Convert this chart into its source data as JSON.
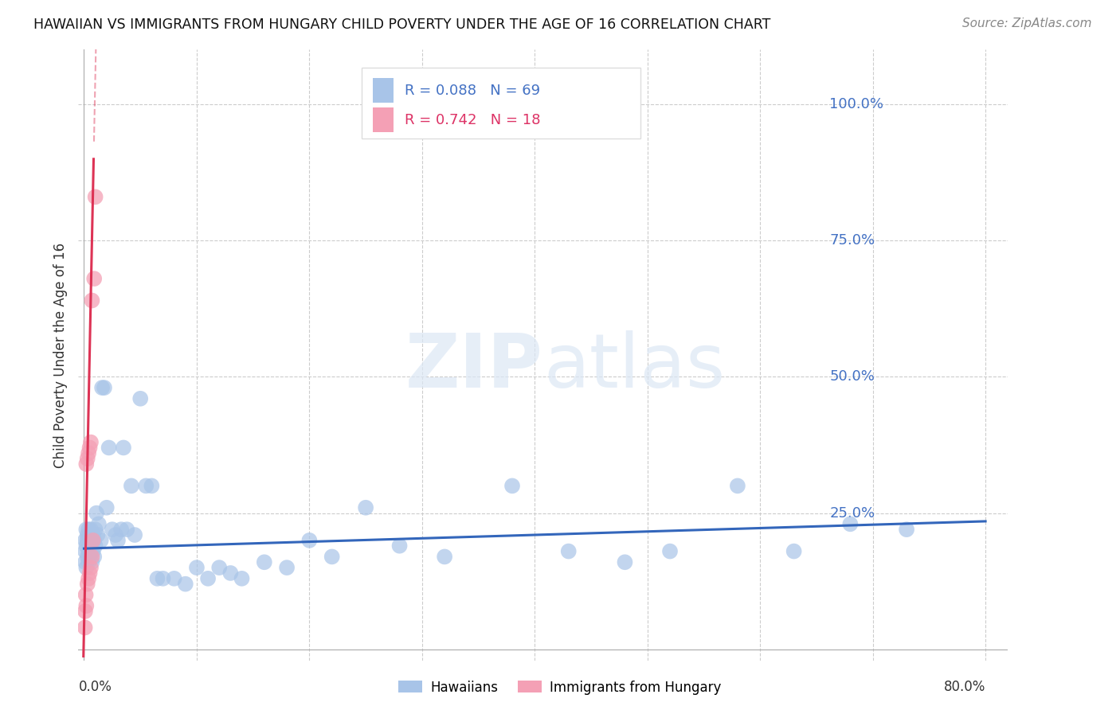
{
  "title": "HAWAIIAN VS IMMIGRANTS FROM HUNGARY CHILD POVERTY UNDER THE AGE OF 16 CORRELATION CHART",
  "source": "Source: ZipAtlas.com",
  "ylabel": "Child Poverty Under the Age of 16",
  "ytick_labels": [
    "100.0%",
    "75.0%",
    "50.0%",
    "25.0%"
  ],
  "ytick_values": [
    1.0,
    0.75,
    0.5,
    0.25
  ],
  "xlim": [
    0.0,
    0.8
  ],
  "ylim": [
    0.0,
    1.05
  ],
  "hawaiians_R": 0.088,
  "hawaiians_N": 69,
  "hungary_R": 0.742,
  "hungary_N": 18,
  "blue_color": "#a8c4e8",
  "pink_color": "#f4a0b5",
  "line_blue": "#3366bb",
  "line_pink": "#dd3355",
  "legend_label1": "Hawaiians",
  "legend_label2": "Immigrants from Hungary",
  "haw_x": [
    0.001,
    0.001,
    0.001,
    0.002,
    0.002,
    0.002,
    0.003,
    0.003,
    0.003,
    0.004,
    0.004,
    0.004,
    0.005,
    0.005,
    0.005,
    0.006,
    0.006,
    0.006,
    0.007,
    0.007,
    0.008,
    0.008,
    0.009,
    0.009,
    0.01,
    0.01,
    0.011,
    0.012,
    0.013,
    0.015,
    0.016,
    0.018,
    0.02,
    0.022,
    0.025,
    0.028,
    0.03,
    0.033,
    0.035,
    0.038,
    0.042,
    0.045,
    0.05,
    0.055,
    0.06,
    0.065,
    0.07,
    0.08,
    0.09,
    0.1,
    0.11,
    0.12,
    0.13,
    0.14,
    0.16,
    0.18,
    0.2,
    0.22,
    0.25,
    0.28,
    0.32,
    0.38,
    0.43,
    0.48,
    0.52,
    0.58,
    0.63,
    0.68,
    0.73
  ],
  "haw_y": [
    0.2,
    0.18,
    0.16,
    0.22,
    0.19,
    0.15,
    0.21,
    0.17,
    0.2,
    0.18,
    0.16,
    0.22,
    0.19,
    0.21,
    0.17,
    0.2,
    0.18,
    0.22,
    0.19,
    0.16,
    0.21,
    0.18,
    0.17,
    0.2,
    0.22,
    0.19,
    0.25,
    0.21,
    0.23,
    0.2,
    0.48,
    0.48,
    0.26,
    0.37,
    0.22,
    0.21,
    0.2,
    0.22,
    0.37,
    0.22,
    0.3,
    0.21,
    0.46,
    0.3,
    0.3,
    0.13,
    0.13,
    0.13,
    0.12,
    0.15,
    0.13,
    0.15,
    0.14,
    0.13,
    0.16,
    0.15,
    0.2,
    0.17,
    0.26,
    0.19,
    0.17,
    0.3,
    0.18,
    0.16,
    0.18,
    0.3,
    0.18,
    0.23,
    0.22
  ],
  "hun_x": [
    0.0008,
    0.001,
    0.0015,
    0.002,
    0.002,
    0.003,
    0.003,
    0.004,
    0.004,
    0.005,
    0.005,
    0.006,
    0.006,
    0.007,
    0.007,
    0.008,
    0.009,
    0.01
  ],
  "hun_y": [
    0.04,
    0.07,
    0.1,
    0.08,
    0.34,
    0.12,
    0.35,
    0.13,
    0.36,
    0.14,
    0.37,
    0.15,
    0.38,
    0.17,
    0.64,
    0.2,
    0.68,
    0.83
  ]
}
